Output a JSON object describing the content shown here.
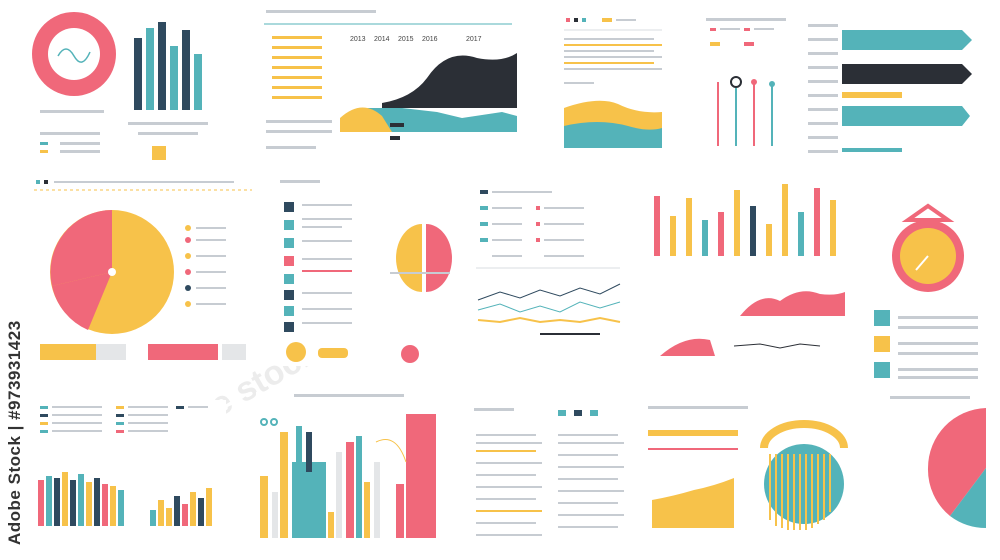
{
  "watermark": {
    "text": "Adobe Stock | #973931423",
    "logo": "adobe stock"
  },
  "colors": {
    "pink": "#f0687a",
    "yellow": "#f7c24a",
    "teal": "#54b3b9",
    "navy": "#2f4a5f",
    "dark": "#2b2f36",
    "grey": "#d9dde1"
  },
  "panels": {
    "p2_years": [
      "2013",
      "2014",
      "2015",
      "2016",
      "2017"
    ]
  }
}
